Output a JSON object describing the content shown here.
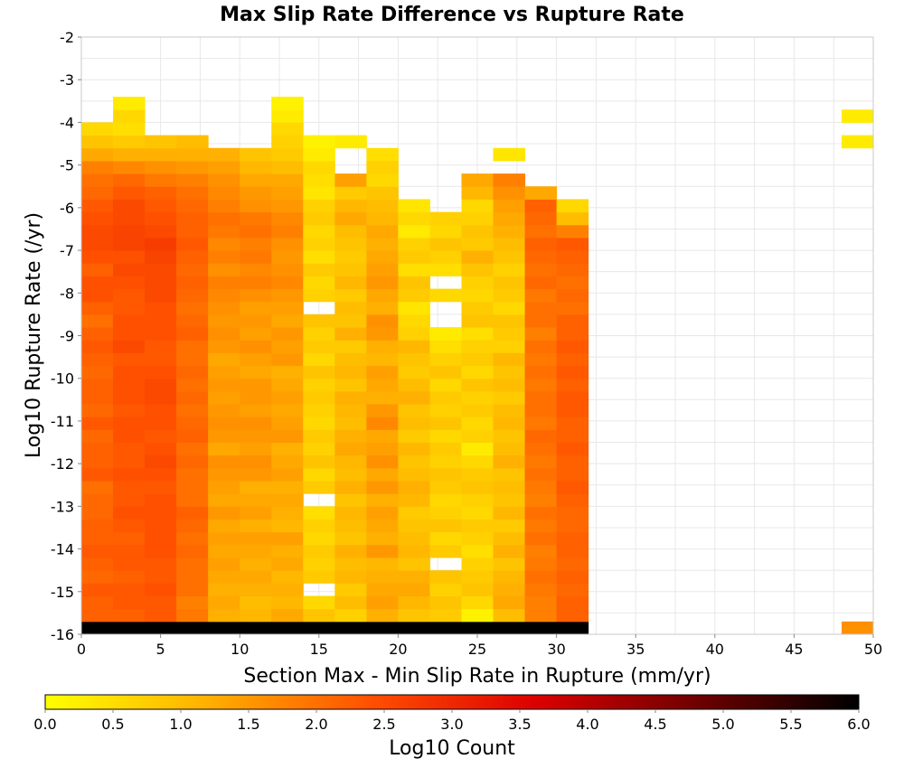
{
  "chart_data": {
    "type": "heatmap",
    "title": "Max Slip Rate Difference vs Rupture Rate",
    "xlabel": "Section Max - Min Slip Rate in Rupture (mm/yr)",
    "ylabel": "Log10 Rupture Rate (/yr)",
    "xlim": [
      0,
      50
    ],
    "ylim": [
      -16,
      -2
    ],
    "xticks": [
      "0",
      "5",
      "10",
      "15",
      "20",
      "25",
      "30",
      "35",
      "40",
      "45",
      "50"
    ],
    "yticks": [
      "-2",
      "-3",
      "-4",
      "-5",
      "-6",
      "-7",
      "-8",
      "-9",
      "-10",
      "-11",
      "-12",
      "-13",
      "-14",
      "-15",
      "-16"
    ],
    "grid": true,
    "bin_width": 2,
    "bin_height": 0.3,
    "y_start": -16,
    "colorbar": {
      "label": "Log10 Count",
      "range": [
        0,
        6
      ],
      "ticks": [
        "0.0",
        "0.5",
        "1.0",
        "1.5",
        "2.0",
        "2.5",
        "3.0",
        "3.5",
        "4.0",
        "4.5",
        "5.0",
        "5.5",
        "6.0"
      ],
      "colors": [
        "#ffff00",
        "#ffb000",
        "#ff5000",
        "#dd0000",
        "#700000",
        "#000000"
      ]
    },
    "columns": [
      {
        "x": 0,
        "values": [
          6.0,
          2.2,
          2.2,
          2.3,
          2.1,
          2.2,
          2.3,
          2.2,
          2.2,
          2.1,
          2.1,
          2.0,
          2.3,
          2.2,
          2.2,
          2.1,
          2.3,
          2.1,
          2.2,
          2.2,
          2.1,
          2.2,
          2.3,
          2.2,
          2.0,
          2.2,
          2.4,
          2.4,
          2.2,
          2.4,
          2.5,
          2.5,
          2.4,
          2.3,
          2.1,
          2.0,
          1.8,
          1.3,
          0.9,
          0.6
        ]
      },
      {
        "x": 2,
        "values": [
          6.0,
          2.2,
          2.3,
          2.3,
          2.2,
          2.3,
          2.3,
          2.2,
          2.3,
          2.4,
          2.3,
          2.3,
          2.4,
          2.3,
          2.3,
          2.4,
          2.4,
          2.3,
          2.4,
          2.4,
          2.4,
          2.3,
          2.5,
          2.4,
          2.4,
          2.3,
          2.3,
          2.4,
          2.5,
          2.4,
          2.6,
          2.6,
          2.5,
          2.5,
          2.3,
          2.1,
          1.7,
          1.2,
          0.8,
          0.5,
          0.6,
          0.3
        ]
      },
      {
        "x": 4,
        "values": [
          6.0,
          2.3,
          2.3,
          2.4,
          2.3,
          2.3,
          2.4,
          2.4,
          2.4,
          2.4,
          2.4,
          2.3,
          2.4,
          2.5,
          2.4,
          2.3,
          2.4,
          2.4,
          2.5,
          2.5,
          2.4,
          2.3,
          2.3,
          2.4,
          2.4,
          2.4,
          2.5,
          2.5,
          2.5,
          2.6,
          2.7,
          2.5,
          2.4,
          2.3,
          2.2,
          1.9,
          1.6,
          1.2,
          0.9
        ]
      },
      {
        "x": 6,
        "values": [
          6.0,
          1.9,
          1.8,
          2.0,
          2.0,
          2.0,
          2.1,
          2.0,
          2.1,
          2.2,
          2.0,
          2.0,
          2.0,
          2.1,
          2.0,
          2.2,
          2.1,
          2.0,
          2.1,
          2.0,
          2.1,
          2.0,
          2.0,
          2.2,
          2.1,
          2.0,
          2.1,
          2.2,
          2.1,
          2.2,
          2.3,
          2.2,
          2.2,
          2.1,
          2.0,
          1.8,
          1.5,
          1.2,
          1.0
        ]
      },
      {
        "x": 8,
        "values": [
          6.0,
          1.2,
          1.3,
          1.2,
          1.3,
          1.4,
          1.3,
          1.4,
          1.3,
          1.5,
          1.3,
          1.4,
          1.5,
          1.6,
          1.3,
          1.5,
          1.6,
          1.5,
          1.4,
          1.5,
          1.4,
          1.3,
          1.5,
          1.6,
          1.5,
          1.6,
          1.7,
          1.8,
          1.6,
          1.8,
          1.7,
          1.9,
          2.0,
          1.8,
          1.7,
          1.6,
          1.4,
          1.2
        ]
      },
      {
        "x": 10,
        "values": [
          6.0,
          1.1,
          1.0,
          1.2,
          1.3,
          1.2,
          1.3,
          1.4,
          1.2,
          1.4,
          1.3,
          1.2,
          1.5,
          1.6,
          1.4,
          1.5,
          1.6,
          1.4,
          1.5,
          1.5,
          1.3,
          1.4,
          1.6,
          1.4,
          1.5,
          1.4,
          1.6,
          1.8,
          1.7,
          1.9,
          1.8,
          2.0,
          1.9,
          1.6,
          1.5,
          1.3,
          1.1,
          0.9
        ]
      },
      {
        "x": 12,
        "values": [
          6.0,
          1.3,
          1.1,
          1.2,
          1.1,
          1.3,
          1.2,
          1.4,
          1.1,
          1.2,
          1.3,
          1.2,
          1.4,
          1.3,
          1.2,
          1.5,
          1.4,
          1.3,
          1.4,
          1.3,
          1.2,
          1.5,
          1.4,
          1.5,
          1.3,
          1.4,
          1.5,
          1.7,
          1.6,
          1.5,
          1.6,
          1.8,
          1.7,
          1.5,
          1.4,
          1.3,
          1.0,
          0.8,
          0.7,
          0.6,
          0.3,
          0.2
        ]
      },
      {
        "x": 14,
        "values": [
          6.0,
          0.9,
          0.6,
          null,
          0.8,
          0.7,
          0.8,
          0.6,
          0.7,
          0.5,
          null,
          0.8,
          0.6,
          0.9,
          0.7,
          0.8,
          0.6,
          0.7,
          0.8,
          0.7,
          0.9,
          0.6,
          0.8,
          0.7,
          0.9,
          null,
          0.7,
          0.6,
          0.8,
          0.5,
          0.7,
          0.6,
          0.8,
          0.7,
          0.4,
          0.5,
          0.6,
          0.3,
          0.2
        ]
      },
      {
        "x": 16,
        "values": [
          6.0,
          0.7,
          1.0,
          0.8,
          1.1,
          1.0,
          1.2,
          0.9,
          1.0,
          1.1,
          0.9,
          1.2,
          1.0,
          1.1,
          1.3,
          1.2,
          1.0,
          1.1,
          1.2,
          0.9,
          1.1,
          1.0,
          0.8,
          1.2,
          0.9,
          1.0,
          0.8,
          1.1,
          0.9,
          0.8,
          0.9,
          1.0,
          1.3,
          1.1,
          0.8,
          1.4,
          null,
          null,
          0.3
        ]
      },
      {
        "x": 18,
        "values": [
          6.0,
          1.2,
          1.4,
          1.3,
          1.2,
          1.1,
          1.5,
          1.2,
          1.3,
          1.4,
          1.2,
          1.5,
          1.3,
          1.6,
          1.4,
          1.3,
          1.7,
          1.5,
          1.2,
          1.3,
          1.4,
          1.1,
          1.2,
          1.5,
          1.6,
          1.2,
          1.3,
          1.5,
          1.4,
          1.3,
          1.2,
          1.3,
          1.1,
          1.0,
          0.9,
          0.6,
          0.7,
          0.5
        ]
      },
      {
        "x": 20,
        "values": [
          6.0,
          0.9,
          1.1,
          1.3,
          1.2,
          0.9,
          1.1,
          1.0,
          0.9,
          0.8,
          1.1,
          1.2,
          1.0,
          0.9,
          1.1,
          0.8,
          1.0,
          0.9,
          1.2,
          1.0,
          0.8,
          0.9,
          1.1,
          0.7,
          0.6,
          0.4,
          0.8,
          0.9,
          0.5,
          0.8,
          0.7,
          0.3,
          0.6,
          0.4
        ]
      },
      {
        "x": 22,
        "values": [
          6.0,
          0.8,
          0.9,
          0.7,
          0.9,
          null,
          0.8,
          0.6,
          0.9,
          0.7,
          0.6,
          0.8,
          0.9,
          0.7,
          0.8,
          0.6,
          0.9,
          0.7,
          0.8,
          0.6,
          0.9,
          0.7,
          0.5,
          0.3,
          null,
          null,
          0.6,
          null,
          0.5,
          0.7,
          0.9,
          0.6,
          0.7
        ]
      },
      {
        "x": 24,
        "values": [
          6.0,
          0.2,
          0.6,
          0.9,
          0.8,
          0.7,
          0.5,
          0.7,
          0.8,
          0.6,
          0.7,
          0.9,
          0.8,
          0.6,
          0.3,
          0.7,
          0.6,
          0.8,
          0.7,
          0.9,
          0.6,
          0.8,
          0.7,
          0.5,
          0.9,
          0.8,
          0.6,
          0.7,
          0.9,
          1.2,
          0.8,
          0.9,
          0.7,
          0.6,
          1.1,
          1.3
        ]
      },
      {
        "x": 26,
        "values": [
          6.0,
          1.0,
          1.3,
          1.2,
          1.1,
          0.9,
          1.2,
          1.0,
          0.8,
          1.1,
          0.9,
          1.0,
          0.9,
          1.2,
          1.0,
          0.9,
          1.1,
          1.0,
          0.8,
          1.0,
          0.9,
          1.1,
          0.7,
          0.8,
          0.9,
          0.6,
          0.8,
          0.9,
          0.7,
          0.9,
          1.0,
          1.2,
          1.3,
          1.4,
          1.6,
          1.8,
          null,
          0.4
        ]
      },
      {
        "x": 28,
        "values": [
          6.0,
          1.8,
          1.8,
          1.9,
          2.0,
          1.9,
          1.8,
          2.0,
          1.9,
          2.0,
          1.8,
          1.9,
          2.0,
          1.9,
          2.0,
          2.1,
          1.9,
          2.0,
          2.0,
          1.9,
          2.0,
          1.9,
          2.0,
          1.8,
          2.0,
          2.0,
          1.9,
          2.1,
          2.0,
          2.1,
          2.2,
          2.0,
          2.1,
          2.2,
          1.3
        ]
      },
      {
        "x": 30,
        "values": [
          6.0,
          2.2,
          2.2,
          2.1,
          2.2,
          2.1,
          2.2,
          2.2,
          2.1,
          2.1,
          2.2,
          2.3,
          2.2,
          2.2,
          2.3,
          2.2,
          2.2,
          2.3,
          2.3,
          2.2,
          2.3,
          2.2,
          2.3,
          2.2,
          2.2,
          2.0,
          2.1,
          2.0,
          2.1,
          2.2,
          2.3,
          1.8,
          1.0,
          0.6
        ]
      },
      {
        "x": 48,
        "values": [
          1.6,
          null,
          null,
          null,
          null,
          null,
          null,
          null,
          null,
          null,
          null,
          null,
          null,
          null,
          null,
          null,
          null,
          null,
          null,
          null,
          null,
          null,
          null,
          null,
          null,
          null,
          null,
          null,
          null,
          null,
          null,
          null,
          null,
          null,
          null,
          null,
          null,
          null,
          0.3,
          null,
          0.3
        ]
      }
    ]
  }
}
